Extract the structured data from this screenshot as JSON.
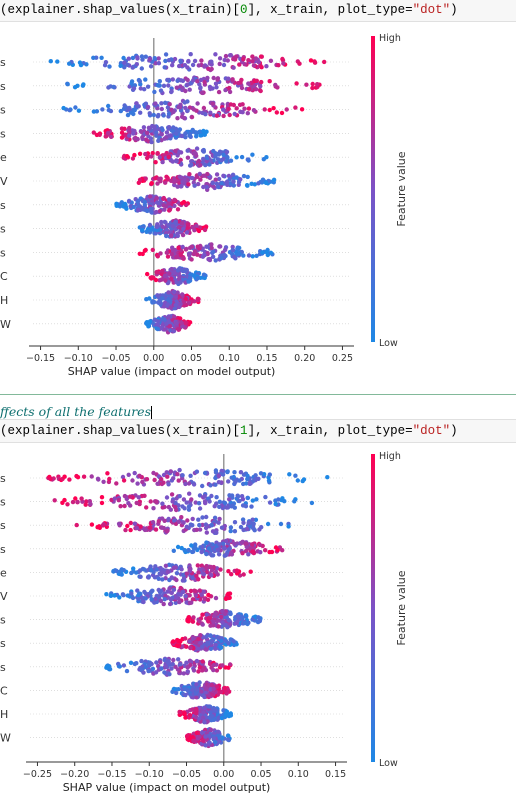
{
  "cells": {
    "code1": {
      "prefix": "(explainer.shap_values(x_train)[",
      "index": "0",
      "mid": "], x_train, plot_type=",
      "str": "\"dot\"",
      "suffix": ")"
    },
    "markdown": {
      "text": "ffects of all the features"
    },
    "code2": {
      "prefix": "(explainer.shap_values(x_train)[",
      "index": "1",
      "mid": "], x_train, plot_type=",
      "str": "\"dot\"",
      "suffix": ")"
    }
  },
  "colors": {
    "low": "#1e88e5",
    "mid": "#7c52c6",
    "high": "#ff0052",
    "zero_line": "#999999"
  },
  "chart_data": [
    {
      "type": "scatter",
      "xlabel": "SHAP value (impact on model output)",
      "xticks": [
        "−0.15",
        "−0.10",
        "−0.05",
        "0.00",
        "0.05",
        "0.10",
        "0.15",
        "0.20",
        "0.25"
      ],
      "xtick_values": [
        -0.15,
        -0.1,
        -0.05,
        0.0,
        0.05,
        0.1,
        0.15,
        0.2,
        0.25
      ],
      "xlim": [
        -0.16,
        0.26
      ],
      "feature_labels": [
        "s",
        "s",
        "s",
        "s",
        "e",
        "V",
        "s",
        "s",
        "s",
        "C",
        "H",
        "W"
      ],
      "colorbar": {
        "label": "Feature value",
        "high": "High",
        "low": "Low"
      },
      "features": [
        {
          "min": -0.14,
          "max": 0.24,
          "bias": 1
        },
        {
          "min": -0.12,
          "max": 0.23,
          "bias": 1
        },
        {
          "min": -0.12,
          "max": 0.2,
          "bias": 1
        },
        {
          "min": -0.08,
          "max": 0.07,
          "bias": -1
        },
        {
          "min": -0.04,
          "max": 0.15,
          "bias": -1
        },
        {
          "min": -0.02,
          "max": 0.16,
          "bias": -1
        },
        {
          "min": -0.05,
          "max": 0.05,
          "bias": 1
        },
        {
          "min": -0.02,
          "max": 0.07,
          "bias": 1
        },
        {
          "min": -0.02,
          "max": 0.16,
          "bias": -1
        },
        {
          "min": -0.01,
          "max": 0.07,
          "bias": -1
        },
        {
          "min": -0.01,
          "max": 0.06,
          "bias": 1
        },
        {
          "min": -0.01,
          "max": 0.05,
          "bias": 1
        }
      ]
    },
    {
      "type": "scatter",
      "xlabel": "SHAP value (impact on model output)",
      "xticks": [
        "−0.25",
        "−0.20",
        "−0.15",
        "−0.10",
        "−0.05",
        "0.00",
        "0.05",
        "0.10",
        "0.15"
      ],
      "xtick_values": [
        -0.25,
        -0.2,
        -0.15,
        -0.1,
        -0.05,
        0.0,
        0.05,
        0.1,
        0.15
      ],
      "xlim": [
        -0.26,
        0.16
      ],
      "feature_labels": [
        "s",
        "s",
        "s",
        "s",
        "e",
        "V",
        "s",
        "s",
        "s",
        "C",
        "H",
        "W"
      ],
      "colorbar": {
        "label": "Feature value",
        "high": "High",
        "low": "Low"
      },
      "features": [
        {
          "min": -0.24,
          "max": 0.14,
          "bias": -1
        },
        {
          "min": -0.23,
          "max": 0.12,
          "bias": -1
        },
        {
          "min": -0.2,
          "max": 0.12,
          "bias": -1
        },
        {
          "min": -0.07,
          "max": 0.08,
          "bias": 1
        },
        {
          "min": -0.15,
          "max": 0.04,
          "bias": 1
        },
        {
          "min": -0.16,
          "max": 0.02,
          "bias": 1
        },
        {
          "min": -0.05,
          "max": 0.05,
          "bias": -1
        },
        {
          "min": -0.07,
          "max": 0.02,
          "bias": -1
        },
        {
          "min": -0.16,
          "max": 0.02,
          "bias": 1
        },
        {
          "min": -0.07,
          "max": 0.01,
          "bias": 1
        },
        {
          "min": -0.06,
          "max": 0.01,
          "bias": -1
        },
        {
          "min": -0.05,
          "max": 0.01,
          "bias": -1
        }
      ]
    }
  ]
}
